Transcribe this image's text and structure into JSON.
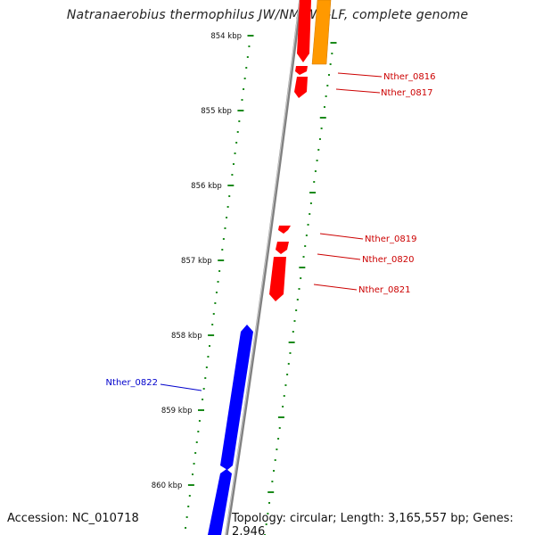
{
  "title": "Natranaerobius thermophilus JW/NM-WN-LF, complete genome",
  "footer": {
    "accession": "Accession: NC_010718",
    "summary": "Topology: circular; Length: 3,165,557 bp; Genes: 2,946"
  },
  "colors": {
    "backbone": "#808080",
    "tick": "#1a8a1a",
    "forward_gene": "#0000ff",
    "reverse_gene": "#ff0000",
    "feature": "#ff9900",
    "label_forward": "#0000cc",
    "label_reverse": "#cc0000"
  },
  "position_labels": [
    "854 kbp",
    "855 kbp",
    "856 kbp",
    "857 kbp",
    "858 kbp",
    "859 kbp",
    "860 kbp"
  ],
  "gene_labels": [
    {
      "text": "Nther_0816",
      "strand": "reverse"
    },
    {
      "text": "Nther_0817",
      "strand": "reverse"
    },
    {
      "text": "Nther_0819",
      "strand": "reverse"
    },
    {
      "text": "Nther_0820",
      "strand": "reverse"
    },
    {
      "text": "Nther_0821",
      "strand": "reverse"
    },
    {
      "text": "Nther_0822",
      "strand": "forward"
    }
  ]
}
